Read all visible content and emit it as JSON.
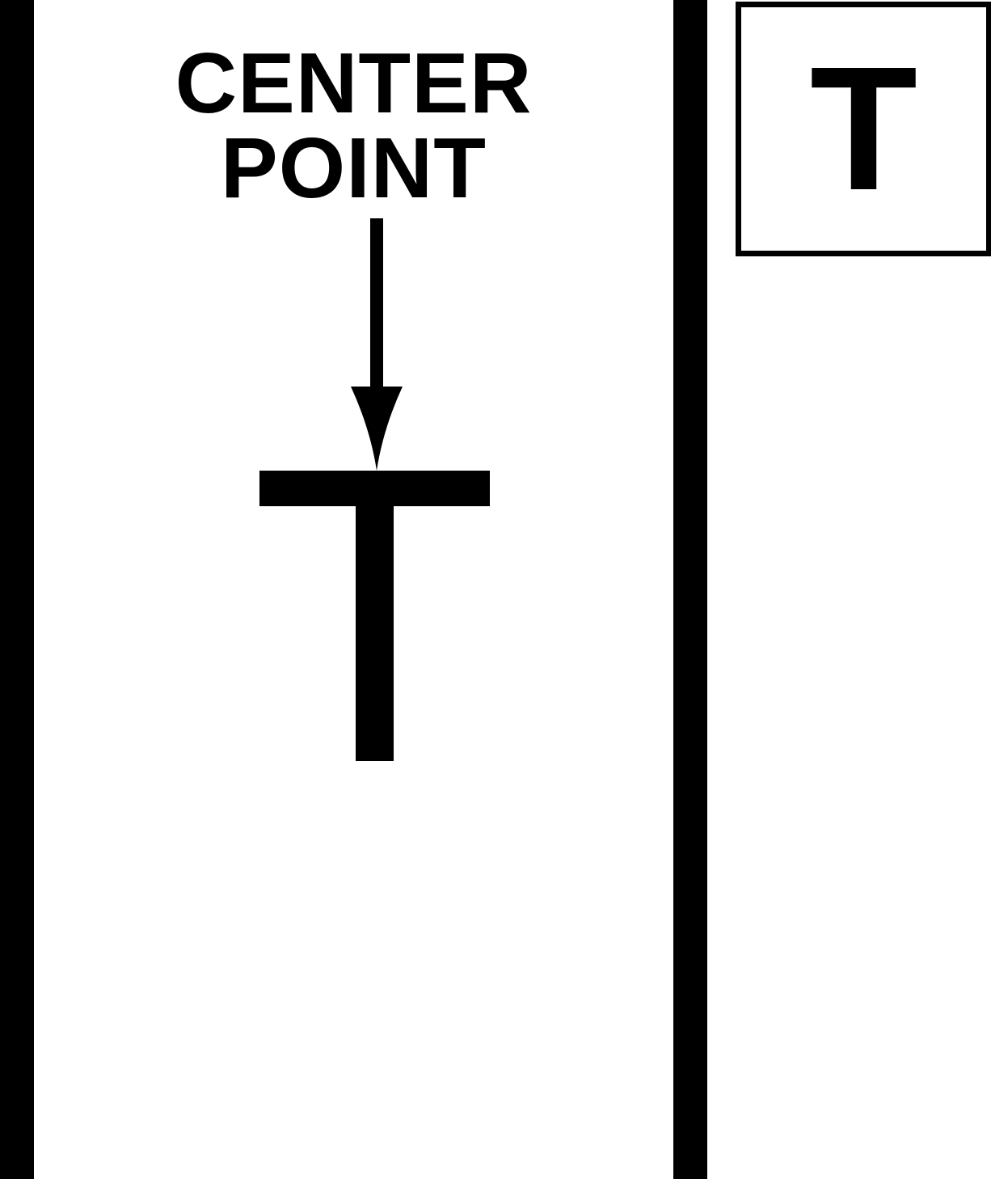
{
  "diagram": {
    "label_lines": [
      "CENTER",
      "POINT"
    ],
    "marker_letter": "T"
  },
  "legend": {
    "letter": "T"
  },
  "colors": {
    "foreground": "#000000",
    "background": "#ffffff"
  }
}
